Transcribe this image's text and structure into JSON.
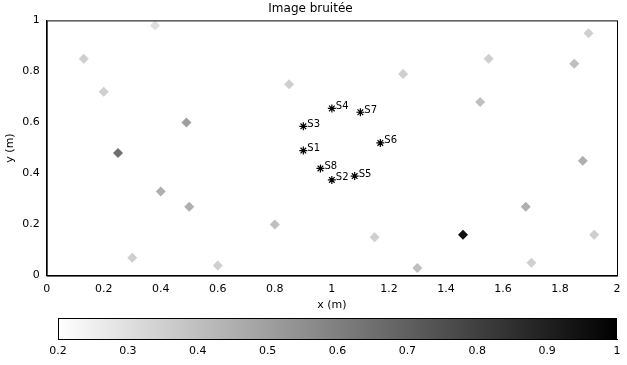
{
  "chart_data": {
    "type": "heatmap",
    "title": "Image bruitée",
    "x_label": "x (m)",
    "y_label": "y (m)",
    "xlim": [
      0,
      2
    ],
    "ylim": [
      0,
      1
    ],
    "xticks": [
      0,
      0.2,
      0.4,
      0.6,
      0.8,
      1,
      1.2,
      1.4,
      1.6,
      1.8,
      2
    ],
    "yticks": [
      0,
      0.2,
      0.4,
      0.6,
      0.8,
      1
    ],
    "grid": false,
    "sources": [
      {
        "name": "S1",
        "x": 0.9,
        "y": 0.49
      },
      {
        "name": "S2",
        "x": 1.0,
        "y": 0.375
      },
      {
        "name": "S3",
        "x": 0.9,
        "y": 0.585
      },
      {
        "name": "S4",
        "x": 1.0,
        "y": 0.655
      },
      {
        "name": "S5",
        "x": 1.08,
        "y": 0.39
      },
      {
        "name": "S6",
        "x": 1.17,
        "y": 0.52
      },
      {
        "name": "S7",
        "x": 1.1,
        "y": 0.64
      },
      {
        "name": "S8",
        "x": 0.96,
        "y": 0.42
      }
    ],
    "marker": "star",
    "cells": [
      {
        "x": 1.46,
        "y": 0.16,
        "value": 0.95
      },
      {
        "x": 0.25,
        "y": 0.48,
        "value": 0.65
      },
      {
        "x": 0.49,
        "y": 0.6,
        "value": 0.5
      },
      {
        "x": 0.4,
        "y": 0.33,
        "value": 0.45
      },
      {
        "x": 0.5,
        "y": 0.27,
        "value": 0.45
      },
      {
        "x": 1.88,
        "y": 0.45,
        "value": 0.45
      },
      {
        "x": 1.85,
        "y": 0.83,
        "value": 0.4
      },
      {
        "x": 1.68,
        "y": 0.27,
        "value": 0.45
      },
      {
        "x": 1.52,
        "y": 0.68,
        "value": 0.4
      },
      {
        "x": 0.2,
        "y": 0.72,
        "value": 0.35
      },
      {
        "x": 1.25,
        "y": 0.79,
        "value": 0.35
      },
      {
        "x": 0.8,
        "y": 0.2,
        "value": 0.4
      },
      {
        "x": 1.55,
        "y": 0.85,
        "value": 0.35
      },
      {
        "x": 0.6,
        "y": 0.04,
        "value": 0.35
      },
      {
        "x": 1.3,
        "y": 0.03,
        "value": 0.4
      },
      {
        "x": 0.3,
        "y": 0.07,
        "value": 0.35
      },
      {
        "x": 1.7,
        "y": 0.05,
        "value": 0.35
      },
      {
        "x": 0.85,
        "y": 0.75,
        "value": 0.35
      },
      {
        "x": 1.92,
        "y": 0.16,
        "value": 0.35
      },
      {
        "x": 0.13,
        "y": 0.85,
        "value": 0.35
      },
      {
        "x": 1.9,
        "y": 0.95,
        "value": 0.35
      },
      {
        "x": 0.38,
        "y": 0.98,
        "value": 0.3
      },
      {
        "x": 1.15,
        "y": 0.15,
        "value": 0.35
      }
    ],
    "colorbar": {
      "range": [
        0.2,
        1
      ],
      "ticks": [
        0.2,
        0.3,
        0.4,
        0.5,
        0.6,
        0.7,
        0.8,
        0.9,
        1
      ]
    }
  }
}
